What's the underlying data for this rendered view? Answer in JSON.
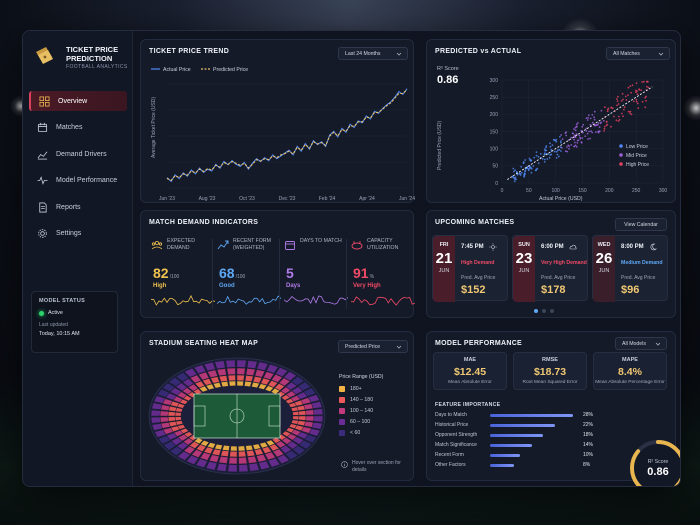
{
  "app": {
    "title": "TICKET PRICE PREDICTION",
    "subtitle": "FOOTBALL ANALYTICS"
  },
  "sidebar": {
    "items": [
      {
        "label": "Overview",
        "icon": "grid-icon",
        "active": true
      },
      {
        "label": "Matches",
        "icon": "calendar-icon",
        "active": false
      },
      {
        "label": "Demand Drivers",
        "icon": "trend-icon",
        "active": false
      },
      {
        "label": "Model Performance",
        "icon": "pulse-icon",
        "active": false
      },
      {
        "label": "Reports",
        "icon": "document-icon",
        "active": false
      },
      {
        "label": "Settings",
        "icon": "gear-icon",
        "active": false
      }
    ],
    "status": {
      "title": "MODEL STATUS",
      "state": "Active",
      "updated_label": "Last updated",
      "updated_value": "Today, 10:15 AM"
    }
  },
  "trend": {
    "title": "TICKET PRICE TREND",
    "dropdown": "Last 24 Months",
    "legend_actual": "Actual Price",
    "legend_predicted": "Predicted Price",
    "ylabel": "Average Ticket Price (USD)"
  },
  "pva": {
    "title": "PREDICTED vs ACTUAL",
    "dropdown": "All Matches",
    "r2_label": "R² Score",
    "r2_value": "0.86",
    "legend": [
      "Low Price",
      "Mid Price",
      "High Price"
    ]
  },
  "demand": {
    "title": "MATCH DEMAND INDICATORS",
    "indicators": [
      {
        "label": "EXPECTED DEMAND",
        "value": "82",
        "unit": "/100",
        "desc": "High",
        "color": "#f0c24f"
      },
      {
        "label": "RECENT FORM (WEIGHTED)",
        "value": "68",
        "unit": "/100",
        "desc": "Good",
        "color": "#5fa8f5"
      },
      {
        "label": "DAYS TO MATCH",
        "value": "5",
        "unit": "",
        "desc": "Days",
        "color": "#b07be8"
      },
      {
        "label": "CAPACITY UTILIZATION",
        "value": "91",
        "unit": "%",
        "desc": "Very High",
        "color": "#f04a66"
      }
    ]
  },
  "upcoming": {
    "title": "UPCOMING MATCHES",
    "button": "View Calendar",
    "matches": [
      {
        "day": "FRI",
        "date": "21",
        "month": "JUN",
        "time": "7:45 PM",
        "weather": "sun-icon",
        "demand": "High Demand",
        "demand_color": "#f04a66",
        "price_label": "Pred. Avg Price",
        "price": "$152",
        "date_bg": "#4a1d2a"
      },
      {
        "day": "SUN",
        "date": "23",
        "month": "JUN",
        "time": "6:00 PM",
        "weather": "cloud-icon",
        "demand": "Very High Demand",
        "demand_color": "#f04a66",
        "price_label": "Pred. Avg Price",
        "price": "$178",
        "date_bg": "#4a1d2a"
      },
      {
        "day": "WED",
        "date": "26",
        "month": "JUN",
        "time": "8:00 PM",
        "weather": "moon-icon",
        "demand": "Medium Demand",
        "demand_color": "#5fa8f5",
        "price_label": "Pred. Avg Price",
        "price": "$96",
        "date_bg": "#3a1f2a"
      }
    ]
  },
  "heatmap": {
    "title": "STADIUM SEATING HEAT MAP",
    "dropdown": "Predicted Price",
    "legend_title": "Price Range (USD)",
    "legend": [
      {
        "label": "180+",
        "color": "#f2b545"
      },
      {
        "label": "140 – 180",
        "color": "#ef5a5a"
      },
      {
        "label": "100 – 140",
        "color": "#c23a7e"
      },
      {
        "label": "60 – 100",
        "color": "#6a2d94"
      },
      {
        "label": "< 60",
        "color": "#3a2c7a"
      }
    ],
    "hint": "Hover over section for details"
  },
  "perf": {
    "title": "MODEL PERFORMANCE",
    "dropdown": "All Models",
    "metrics": [
      {
        "key": "MAE",
        "value": "$12.45",
        "desc": "Mean Absolute Error"
      },
      {
        "key": "RMSE",
        "value": "$18.73",
        "desc": "Root Mean Squared Error"
      },
      {
        "key": "MAPE",
        "value": "8.4%",
        "desc": "Mean Absolute Percentage Error"
      }
    ],
    "fi_title": "FEATURE IMPORTANCE",
    "features": [
      {
        "name": "Days to Match",
        "pct": "28%",
        "value": 28
      },
      {
        "name": "Historical Price",
        "pct": "22%",
        "value": 22
      },
      {
        "name": "Opponent Strength",
        "pct": "18%",
        "value": 18
      },
      {
        "name": "Match Significance",
        "pct": "14%",
        "value": 14
      },
      {
        "name": "Recent Form",
        "pct": "10%",
        "value": 10
      },
      {
        "name": "Other Factors",
        "pct": "8%",
        "value": 8
      }
    ],
    "ring_label": "R² Score",
    "ring_value": "0.86",
    "ring_fraction": 0.86
  },
  "chart_data": [
    {
      "type": "line",
      "x_ticks": [
        "Jun '23",
        "Aug '23",
        "Oct '23",
        "Dec '23",
        "Feb '24",
        "Apr '24",
        "Jun '24"
      ],
      "series": [
        {
          "name": "Actual Price",
          "color": "#4f86f0",
          "values": [
            52,
            44,
            58,
            50,
            62,
            55,
            68,
            60,
            72,
            63,
            70,
            66,
            80,
            72,
            86,
            79,
            88,
            80,
            76,
            84,
            70,
            82,
            92,
            86,
            94,
            88,
            100,
            92,
            98,
            104,
            110,
            100,
            118,
            108,
            124,
            112,
            130,
            122,
            128,
            118,
            142,
            150,
            138,
            156,
            148,
            165,
            158,
            172,
            168,
            182,
            176,
            192,
            188,
            198,
            206,
            212,
            222,
            234,
            228,
            240
          ]
        },
        {
          "name": "Predicted Price",
          "color": "#e8c06a",
          "values": [
            50,
            46,
            56,
            52,
            60,
            57,
            66,
            62,
            70,
            65,
            71,
            68,
            78,
            74,
            84,
            80,
            86,
            82,
            78,
            82,
            72,
            80,
            90,
            87,
            92,
            90,
            98,
            94,
            100,
            103,
            108,
            102,
            116,
            110,
            122,
            114,
            128,
            123,
            126,
            120,
            140,
            148,
            140,
            154,
            150,
            162,
            160,
            170,
            170,
            180,
            178,
            190,
            190,
            197,
            204,
            210,
            220,
            230,
            230,
            238
          ]
        }
      ]
    },
    {
      "type": "scatter",
      "title": "PREDICTED vs ACTUAL",
      "xlabel": "Actual Price (USD)",
      "ylabel": "Predicted Price (USD)",
      "xlim": [
        0,
        300
      ],
      "ylim": [
        0,
        300
      ],
      "x_ticks": [
        0,
        50,
        100,
        150,
        200,
        250,
        300
      ],
      "y_ticks": [
        0,
        50,
        100,
        150,
        200,
        250,
        300
      ],
      "series": [
        "Low Price",
        "Mid Price",
        "High Price"
      ]
    }
  ]
}
